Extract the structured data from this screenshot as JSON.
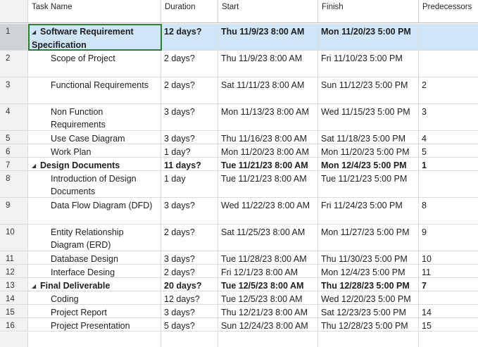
{
  "columns": {
    "id": "",
    "name": "Task Name",
    "duration": "Duration",
    "start": "Start",
    "finish": "Finish",
    "predecessors": "Predecessors"
  },
  "rows": [
    {
      "id": "1",
      "name": "Software Requirement Specification",
      "duration": "12 days?",
      "start": "Thu 11/9/23 8:00 AM",
      "finish": "Mon 11/20/23 5:00 PM",
      "pred": "",
      "summary": true,
      "selected": true
    },
    {
      "id": "2",
      "name": "Scope of Project",
      "duration": "2 days?",
      "start": "Thu 11/9/23 8:00 AM",
      "finish": "Fri 11/10/23 5:00 PM",
      "pred": "",
      "summary": false
    },
    {
      "id": "3",
      "name": "Functional Requirements",
      "duration": "2 days?",
      "start": "Sat 11/11/23 8:00 AM",
      "finish": "Sun 11/12/23 5:00 PM",
      "pred": "2",
      "summary": false
    },
    {
      "id": "4",
      "name": "Non Function Requirements",
      "duration": "3 days?",
      "start": "Mon 11/13/23 8:00 AM",
      "finish": "Wed 11/15/23 5:00 PM",
      "pred": "3",
      "summary": false
    },
    {
      "id": "5",
      "name": "Use Case Diagram",
      "duration": "3 days?",
      "start": "Thu 11/16/23 8:00 AM",
      "finish": "Sat 11/18/23 5:00 PM",
      "pred": "4",
      "summary": false
    },
    {
      "id": "6",
      "name": "Work Plan",
      "duration": "1 day?",
      "start": "Mon 11/20/23 8:00 AM",
      "finish": "Mon 11/20/23 5:00 PM",
      "pred": "5",
      "summary": false
    },
    {
      "id": "7",
      "name": "Design Documents",
      "duration": "11 days?",
      "start": "Tue 11/21/23 8:00 AM",
      "finish": "Mon 12/4/23 5:00 PM",
      "pred": "1",
      "summary": true
    },
    {
      "id": "8",
      "name": "Introduction of Design Documents",
      "duration": "1 day",
      "start": "Tue 11/21/23 8:00 AM",
      "finish": "Tue 11/21/23 5:00 PM",
      "pred": "",
      "summary": false
    },
    {
      "id": "9",
      "name": "Data Flow Diagram (DFD)",
      "duration": "3 days?",
      "start": "Wed 11/22/23 8:00 AM",
      "finish": "Fri 11/24/23 5:00 PM",
      "pred": "8",
      "summary": false
    },
    {
      "id": "10",
      "name": "Entity Relationship Diagram (ERD)",
      "duration": "2 days?",
      "start": "Sat 11/25/23 8:00 AM",
      "finish": "Mon 11/27/23 5:00 PM",
      "pred": "9",
      "summary": false
    },
    {
      "id": "11",
      "name": "Database Design",
      "duration": "3 days?",
      "start": "Tue 11/28/23 8:00 AM",
      "finish": "Thu 11/30/23 5:00 PM",
      "pred": "10",
      "summary": false
    },
    {
      "id": "12",
      "name": "Interface Desing",
      "duration": "2 days?",
      "start": "Fri 12/1/23 8:00 AM",
      "finish": "Mon 12/4/23 5:00 PM",
      "pred": "11",
      "summary": false
    },
    {
      "id": "13",
      "name": "Final Deliverable",
      "duration": "20 days?",
      "start": "Tue 12/5/23 8:00 AM",
      "finish": "Thu 12/28/23 5:00 PM",
      "pred": "7",
      "summary": true
    },
    {
      "id": "14",
      "name": "Coding",
      "duration": "12 days?",
      "start": "Tue 12/5/23 8:00 AM",
      "finish": "Wed 12/20/23 5:00 PM",
      "pred": "",
      "summary": false
    },
    {
      "id": "15",
      "name": "Project Report",
      "duration": "3 days?",
      "start": "Thu 12/21/23 8:00 AM",
      "finish": "Sat 12/23/23 5:00 PM",
      "pred": "14",
      "summary": false
    },
    {
      "id": "16",
      "name": "Project Presentation",
      "duration": "5 days?",
      "start": "Sun 12/24/23 8:00 AM",
      "finish": "Thu 12/28/23 5:00 PM",
      "pred": "15",
      "summary": false
    }
  ],
  "icons": {
    "collapse": "collapse-triangle-icon"
  },
  "colors": {
    "selected_row": "#cfe5f8",
    "selection_border": "#2e7d32"
  }
}
